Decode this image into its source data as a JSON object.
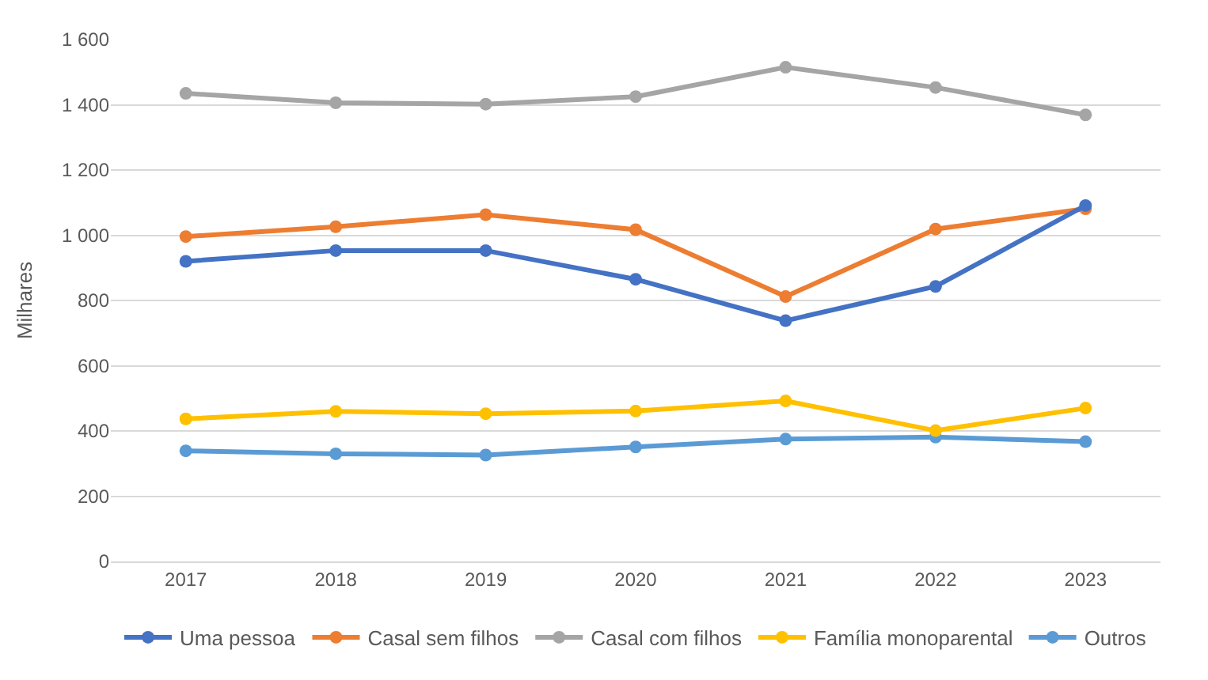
{
  "chart_data": {
    "type": "line",
    "ylabel": "Milhares",
    "categories": [
      "2017",
      "2018",
      "2019",
      "2020",
      "2021",
      "2022",
      "2023"
    ],
    "series": [
      {
        "name": "Uma pessoa",
        "color": "#4472c4",
        "values": [
          920,
          953,
          953,
          865,
          738,
          843,
          1091
        ]
      },
      {
        "name": "Casal sem filhos",
        "color": "#ed7d31",
        "values": [
          996,
          1026,
          1063,
          1017,
          812,
          1019,
          1081
        ]
      },
      {
        "name": "Casal com filhos",
        "color": "#a5a5a5",
        "values": [
          1435,
          1406,
          1402,
          1425,
          1515,
          1453,
          1369
        ]
      },
      {
        "name": "Família monoparental",
        "color": "#ffc000",
        "values": [
          437,
          460,
          453,
          461,
          492,
          401,
          470
        ]
      },
      {
        "name": "Outros",
        "color": "#5b9bd5",
        "values": [
          339,
          330,
          326,
          351,
          375,
          381,
          367
        ]
      }
    ],
    "ylim": [
      0,
      1600
    ],
    "yticks": [
      0,
      200,
      400,
      600,
      800,
      {
        "value": 1000,
        "label": "1 000"
      },
      {
        "value": 1200,
        "label": "1 200"
      },
      {
        "value": 1400,
        "label": "1 400"
      },
      {
        "value": 1600,
        "label": "1 600"
      }
    ],
    "grid": "y",
    "legend": "bottom",
    "marker": "circle",
    "line_style": "solid"
  }
}
